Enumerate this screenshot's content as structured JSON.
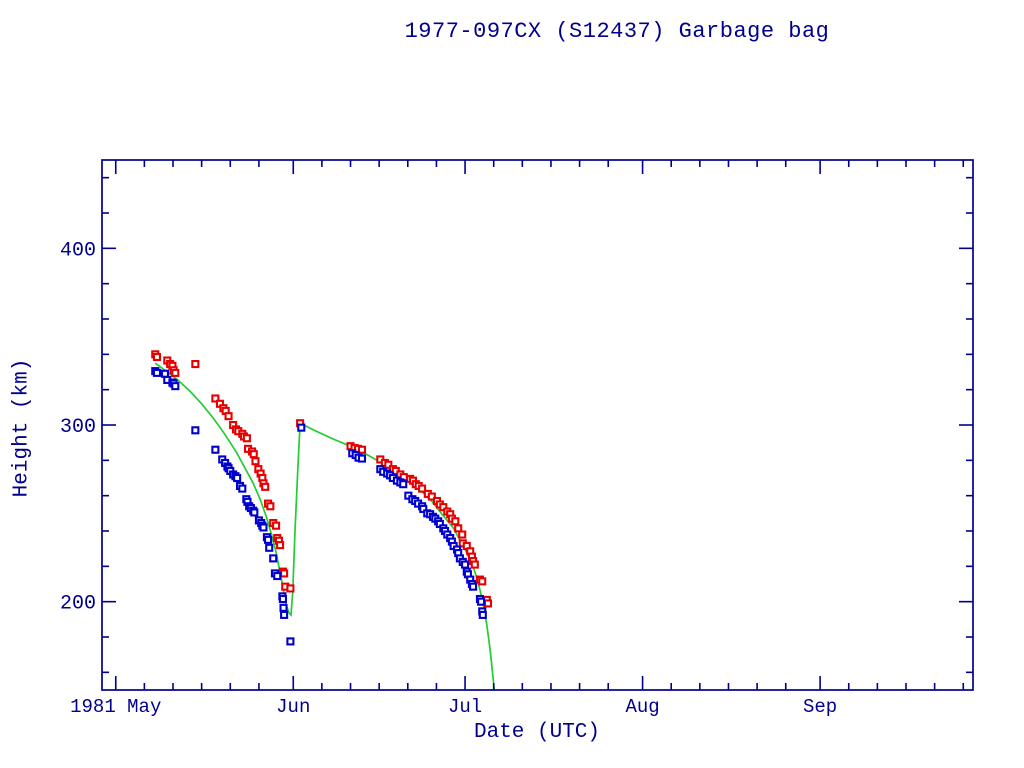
{
  "title": "1977-097CX (S12437) Garbage bag",
  "colors": {
    "axis": "#00008c",
    "text": "#00008c",
    "red_marker": "#e60000",
    "blue_marker": "#0000cc",
    "green_line": "#22cc33",
    "background": "#ffffff"
  },
  "chart_data": {
    "type": "scatter",
    "title": "1977-097CX (S12437) Garbage bag",
    "xlabel": "Date (UTC)",
    "ylabel": "Height (km)",
    "grid": false,
    "legend": "none",
    "x_axis": {
      "unit": "days since 1981 May 1 (UTC)",
      "range_days": [
        -2.4,
        149.7
      ],
      "major_ticks": [
        {
          "day": 0,
          "label": "1981 May"
        },
        {
          "day": 31,
          "label": "Jun"
        },
        {
          "day": 61,
          "label": "Jul"
        },
        {
          "day": 92,
          "label": "Aug"
        },
        {
          "day": 123,
          "label": "Sep"
        }
      ],
      "minor_tick_day_offsets": [
        5,
        10,
        15,
        20,
        25
      ]
    },
    "y_axis": {
      "min": 150,
      "max": 450,
      "major_ticks": [
        200,
        300,
        400
      ],
      "minor_step": 20
    },
    "series": [
      {
        "name": "red_squares",
        "marker": "open-square",
        "color": "#e60000",
        "points": [
          [
            6.9,
            340
          ],
          [
            7.2,
            338.5
          ],
          [
            9.0,
            336.5
          ],
          [
            9.5,
            334.5
          ],
          [
            9.9,
            333.5
          ],
          [
            10.1,
            331
          ],
          [
            10.4,
            329.5
          ],
          [
            13.9,
            334.5
          ],
          [
            17.4,
            315
          ],
          [
            18.2,
            312
          ],
          [
            18.8,
            309.5
          ],
          [
            19.2,
            308
          ],
          [
            19.7,
            305
          ],
          [
            20.5,
            300
          ],
          [
            21.0,
            297.5
          ],
          [
            21.4,
            296.5
          ],
          [
            22.1,
            295
          ],
          [
            22.4,
            293.5
          ],
          [
            22.9,
            292.5
          ],
          [
            23.1,
            286.5
          ],
          [
            23.8,
            285
          ],
          [
            24.1,
            283.5
          ],
          [
            24.4,
            279.5
          ],
          [
            24.9,
            275
          ],
          [
            25.3,
            272.5
          ],
          [
            25.6,
            270
          ],
          [
            25.8,
            267
          ],
          [
            26.1,
            265
          ],
          [
            26.6,
            255.5
          ],
          [
            27.0,
            254
          ],
          [
            27.5,
            244.5
          ],
          [
            28.0,
            243
          ],
          [
            28.2,
            236
          ],
          [
            28.5,
            234.5
          ],
          [
            28.7,
            232
          ],
          [
            29.2,
            217
          ],
          [
            29.4,
            216
          ],
          [
            29.6,
            208.5
          ],
          [
            30.5,
            207.5
          ],
          [
            32.2,
            301
          ],
          [
            41.0,
            288
          ],
          [
            41.7,
            287
          ],
          [
            42.3,
            286.5
          ],
          [
            43.0,
            286
          ],
          [
            46.2,
            280.5
          ],
          [
            47.0,
            278.5
          ],
          [
            47.6,
            277.5
          ],
          [
            48.4,
            275
          ],
          [
            48.9,
            274
          ],
          [
            49.7,
            272
          ],
          [
            50.3,
            270.5
          ],
          [
            51.4,
            269.5
          ],
          [
            51.9,
            268.5
          ],
          [
            52.4,
            266.5
          ],
          [
            52.9,
            265.5
          ],
          [
            53.5,
            264
          ],
          [
            54.5,
            261
          ],
          [
            55.2,
            259.5
          ],
          [
            56.1,
            257
          ],
          [
            56.6,
            255
          ],
          [
            57.2,
            253.5
          ],
          [
            57.9,
            251
          ],
          [
            58.4,
            249.5
          ],
          [
            58.7,
            247
          ],
          [
            59.3,
            245.5
          ],
          [
            59.8,
            241.5
          ],
          [
            60.5,
            238
          ],
          [
            60.6,
            233
          ],
          [
            61.3,
            231.5
          ],
          [
            61.9,
            228.5
          ],
          [
            62.2,
            225.5
          ],
          [
            62.4,
            223
          ],
          [
            62.7,
            221
          ],
          [
            63.6,
            212.5
          ],
          [
            64.0,
            211.5
          ],
          [
            64.8,
            201
          ],
          [
            65.0,
            199
          ]
        ]
      },
      {
        "name": "blue_squares",
        "marker": "open-square",
        "color": "#0000cc",
        "points": [
          [
            6.9,
            330.5
          ],
          [
            7.2,
            329.5
          ],
          [
            8.6,
            329
          ],
          [
            9.0,
            325.5
          ],
          [
            9.9,
            324
          ],
          [
            10.1,
            323.5
          ],
          [
            10.4,
            322
          ],
          [
            13.9,
            297
          ],
          [
            17.4,
            286
          ],
          [
            18.6,
            280.5
          ],
          [
            19.1,
            278.5
          ],
          [
            19.5,
            276.5
          ],
          [
            19.7,
            275.5
          ],
          [
            20.0,
            274
          ],
          [
            20.5,
            272
          ],
          [
            20.9,
            271
          ],
          [
            21.2,
            270
          ],
          [
            21.7,
            265.5
          ],
          [
            22.1,
            264
          ],
          [
            22.8,
            258
          ],
          [
            23.0,
            256.5
          ],
          [
            23.3,
            254
          ],
          [
            23.6,
            253
          ],
          [
            24.0,
            251.5
          ],
          [
            24.2,
            250.5
          ],
          [
            25.0,
            246
          ],
          [
            25.4,
            244.5
          ],
          [
            25.6,
            243
          ],
          [
            25.8,
            242
          ],
          [
            26.4,
            236.5
          ],
          [
            26.6,
            235
          ],
          [
            26.8,
            230.5
          ],
          [
            27.5,
            224.5
          ],
          [
            27.8,
            216
          ],
          [
            28.2,
            214.5
          ],
          [
            29.1,
            203
          ],
          [
            29.2,
            201.5
          ],
          [
            29.3,
            196.5
          ],
          [
            29.4,
            192.5
          ],
          [
            30.5,
            177.5
          ],
          [
            32.4,
            298.5
          ],
          [
            41.3,
            284
          ],
          [
            41.9,
            283
          ],
          [
            42.4,
            281.5
          ],
          [
            43.0,
            281
          ],
          [
            46.2,
            275
          ],
          [
            46.7,
            273.5
          ],
          [
            47.4,
            272.5
          ],
          [
            47.9,
            271.5
          ],
          [
            48.4,
            270
          ],
          [
            49.1,
            268.5
          ],
          [
            49.7,
            267.5
          ],
          [
            50.2,
            266.5
          ],
          [
            51.1,
            260
          ],
          [
            51.8,
            258
          ],
          [
            52.3,
            257
          ],
          [
            52.8,
            255.5
          ],
          [
            53.5,
            254
          ],
          [
            53.7,
            252.5
          ],
          [
            54.4,
            250
          ],
          [
            54.9,
            249.5
          ],
          [
            55.4,
            248
          ],
          [
            55.8,
            247
          ],
          [
            56.3,
            245.5
          ],
          [
            56.6,
            244
          ],
          [
            57.2,
            241.5
          ],
          [
            57.5,
            240
          ],
          [
            57.9,
            238
          ],
          [
            58.4,
            236
          ],
          [
            58.7,
            234
          ],
          [
            59.0,
            231.5
          ],
          [
            59.6,
            229.5
          ],
          [
            59.8,
            227.5
          ],
          [
            60.1,
            224.5
          ],
          [
            60.6,
            222.5
          ],
          [
            61.0,
            221
          ],
          [
            61.3,
            217
          ],
          [
            61.5,
            215.5
          ],
          [
            61.9,
            212.5
          ],
          [
            62.2,
            210
          ],
          [
            62.4,
            208.5
          ],
          [
            63.6,
            201.5
          ],
          [
            63.8,
            200
          ],
          [
            64.0,
            194.5
          ],
          [
            64.1,
            192.5
          ]
        ]
      },
      {
        "name": "green_line",
        "marker": "line",
        "color": "#22cc33",
        "points": [
          [
            6.9,
            335
          ],
          [
            9,
            330
          ],
          [
            11,
            325
          ],
          [
            13,
            319
          ],
          [
            15,
            312
          ],
          [
            17,
            304
          ],
          [
            19,
            295
          ],
          [
            21,
            285
          ],
          [
            22.5,
            276
          ],
          [
            24,
            267
          ],
          [
            25.2,
            258
          ],
          [
            26.3,
            248
          ],
          [
            27.2,
            238
          ],
          [
            28.0,
            228
          ],
          [
            28.6,
            218
          ],
          [
            29.2,
            208
          ],
          [
            29.7,
            199
          ],
          [
            30.2,
            194
          ],
          [
            30.6,
            192.5
          ],
          [
            30.9,
            205
          ],
          [
            31.3,
            240
          ],
          [
            31.8,
            275
          ],
          [
            32.2,
            301
          ],
          [
            35,
            296.5
          ],
          [
            38,
            292
          ],
          [
            41,
            288
          ],
          [
            44,
            283
          ],
          [
            47,
            277.5
          ],
          [
            50,
            271
          ],
          [
            52.5,
            265
          ],
          [
            54.9,
            258
          ],
          [
            56.6,
            251
          ],
          [
            58.9,
            242
          ],
          [
            60.6,
            232
          ],
          [
            62.2,
            222
          ],
          [
            63.2,
            212
          ],
          [
            64.1,
            200
          ],
          [
            64.8,
            187
          ],
          [
            65.4,
            172
          ],
          [
            65.8,
            160
          ],
          [
            66.1,
            150
          ]
        ]
      }
    ]
  }
}
